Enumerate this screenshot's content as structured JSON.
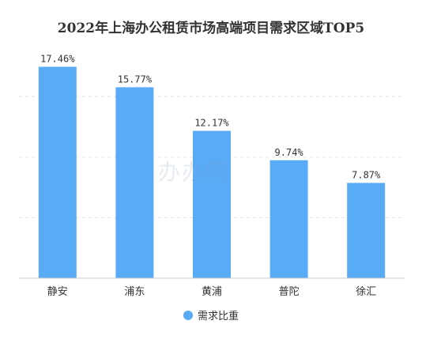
{
  "chart_data": {
    "type": "bar",
    "title": "2022年上海办公租赁市场高端项目需求区域TOP5",
    "categories": [
      "静安",
      "浦东",
      "黄浦",
      "普陀",
      "徐汇"
    ],
    "series": [
      {
        "name": "需求比重",
        "values": [
          17.46,
          15.77,
          12.17,
          9.74,
          7.87
        ],
        "labels": [
          "17.46%",
          "15.77%",
          "12.17%",
          "9.74%",
          "7.87%"
        ]
      }
    ],
    "ylim": [
      0,
      18
    ],
    "grid": true,
    "legend": "bottom-center",
    "bar_color": "#5aabf5"
  },
  "watermark": "办办网"
}
